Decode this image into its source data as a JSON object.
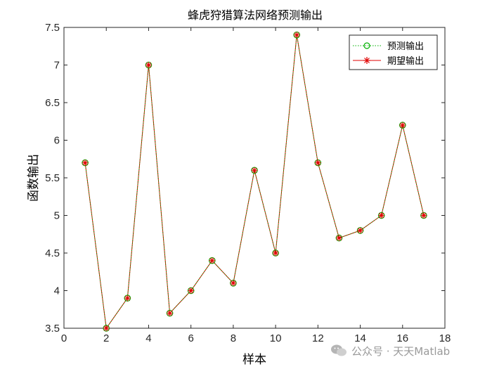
{
  "chart_data": {
    "type": "line",
    "title": "蜂虎狩猎算法网络预测输出",
    "xlabel": "样本",
    "ylabel": "函数输出",
    "xlim": [
      0,
      18
    ],
    "ylim": [
      3.5,
      7.5
    ],
    "x_ticks": [
      "0",
      "2",
      "4",
      "6",
      "8",
      "10",
      "12",
      "14",
      "16",
      "18"
    ],
    "y_ticks": [
      "3.5",
      "4",
      "4.5",
      "5",
      "5.5",
      "6",
      "6.5",
      "7",
      "7.5"
    ],
    "x": [
      1,
      2,
      3,
      4,
      5,
      6,
      7,
      8,
      9,
      10,
      11,
      12,
      13,
      14,
      15,
      16,
      17
    ],
    "series": [
      {
        "name": "预测输出",
        "style": "dotted line with circle markers",
        "color": "#00b000",
        "values": [
          5.7,
          3.5,
          3.9,
          7.0,
          3.7,
          4.0,
          4.4,
          4.1,
          5.6,
          4.5,
          7.4,
          5.7,
          4.7,
          4.8,
          5.0,
          6.2,
          5.0
        ]
      },
      {
        "name": "期望输出",
        "style": "solid line with asterisk markers",
        "color": "#e00000",
        "values": [
          5.7,
          3.5,
          3.9,
          7.0,
          3.7,
          4.0,
          4.4,
          4.1,
          5.6,
          4.5,
          7.4,
          5.7,
          4.7,
          4.8,
          5.0,
          6.2,
          5.0
        ]
      }
    ],
    "legend_position": "top-right",
    "grid": false
  },
  "watermark": {
    "text": "公众号 · 天天Matlab",
    "icon": "wechat-icon"
  }
}
